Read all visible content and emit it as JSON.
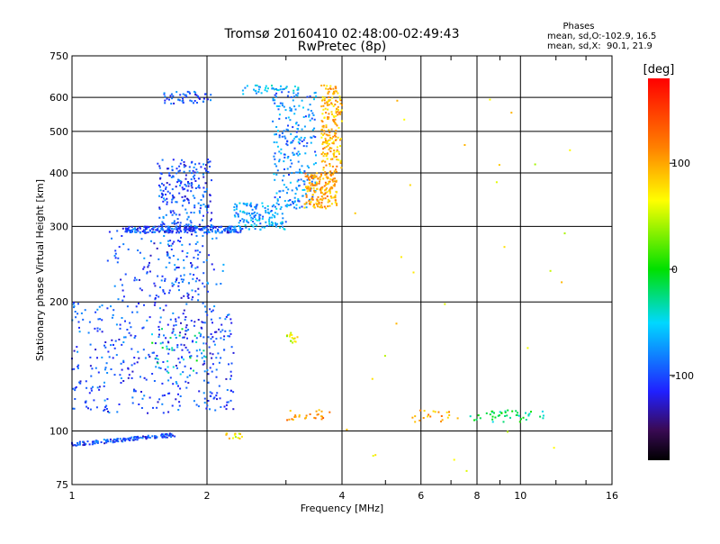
{
  "chart_data": {
    "type": "scatter",
    "title": "Tromsø 20160410 02:48:00-02:49:43",
    "subtitle": "RwPretec (8p)",
    "xlabel": "Frequency [MHz]",
    "ylabel": "Stationary phase Virtual Height [km]",
    "x_scale": "log",
    "y_scale": "log",
    "xlim": [
      1,
      16
    ],
    "ylim": [
      75,
      750
    ],
    "x_ticks": [
      1,
      2,
      4,
      6,
      8,
      10,
      16
    ],
    "x_tick_labels": [
      "1",
      "2",
      "4",
      "6",
      "8",
      "10",
      "16"
    ],
    "x_minor_ticks": [
      3,
      5,
      7,
      9,
      12,
      14
    ],
    "y_ticks": [
      75,
      100,
      200,
      300,
      400,
      500,
      600,
      750
    ],
    "y_tick_labels": [
      "75",
      "100",
      "200",
      "300",
      "400",
      "500",
      "600",
      "750"
    ],
    "grid": true,
    "phase_stats": {
      "heading": "Phases",
      "line_o": "mean, sd,O:-102.9, 16.5",
      "line_x": "mean, sd,X:  90.1, 21.9"
    },
    "colorbar": {
      "label": "[deg]",
      "range": [
        -180,
        180
      ],
      "ticks": [
        100,
        0,
        -100
      ],
      "tick_labels": [
        "100",
        "0",
        "-100"
      ]
    },
    "point_groups": [
      {
        "x": [
          1.0,
          1.7
        ],
        "y": [
          93,
          98
        ],
        "phase": -100,
        "n": 140,
        "shape": "rising-line"
      },
      {
        "x": [
          1.0,
          2.3
        ],
        "y": [
          110,
          200
        ],
        "phase": -100,
        "n": 420
      },
      {
        "x": [
          1.2,
          2.0
        ],
        "y": [
          200,
          300
        ],
        "phase": -100,
        "n": 120
      },
      {
        "x": [
          1.55,
          2.2
        ],
        "y": [
          210,
          290
        ],
        "phase": -95,
        "n": 60
      },
      {
        "x": [
          1.55,
          2.05
        ],
        "y": [
          300,
          430
        ],
        "phase": -100,
        "n": 220
      },
      {
        "x": [
          1.6,
          2.05
        ],
        "y": [
          580,
          620
        ],
        "phase": -100,
        "n": 50
      },
      {
        "x": [
          1.3,
          2.4
        ],
        "y": [
          290,
          300
        ],
        "phase": -100,
        "n": 220
      },
      {
        "x": [
          2.3,
          3.0
        ],
        "y": [
          295,
          340
        ],
        "phase": -70,
        "n": 140
      },
      {
        "x": [
          2.8,
          3.5
        ],
        "y": [
          330,
          620
        ],
        "phase": -80,
        "n": 240
      },
      {
        "x": [
          2.4,
          3.2
        ],
        "y": [
          610,
          640
        ],
        "phase": -60,
        "n": 40
      },
      {
        "x": [
          3.3,
          3.9
        ],
        "y": [
          330,
          400
        ],
        "phase": 100,
        "n": 180
      },
      {
        "x": [
          3.6,
          4.0
        ],
        "y": [
          400,
          640
        ],
        "phase": 95,
        "n": 200
      },
      {
        "x": [
          3.0,
          3.2
        ],
        "y": [
          160,
          170
        ],
        "phase": 60,
        "n": 16
      },
      {
        "x": [
          2.2,
          2.4
        ],
        "y": [
          96,
          99
        ],
        "phase": 70,
        "n": 14
      },
      {
        "x": [
          1.5,
          2.0
        ],
        "y": [
          135,
          175
        ],
        "phase": -30,
        "n": 30
      },
      {
        "x": [
          3.0,
          3.8
        ],
        "y": [
          106,
          112
        ],
        "phase": 110,
        "n": 26
      },
      {
        "x": [
          5.7,
          7.3
        ],
        "y": [
          105,
          112
        ],
        "phase": 100,
        "n": 20
      },
      {
        "x": [
          7.7,
          11.5
        ],
        "y": [
          105,
          112
        ],
        "phase": -20,
        "n": 46
      },
      {
        "x": [
          4.0,
          13.0
        ],
        "y": [
          80,
          620
        ],
        "phase": 70,
        "n": 30
      }
    ]
  }
}
